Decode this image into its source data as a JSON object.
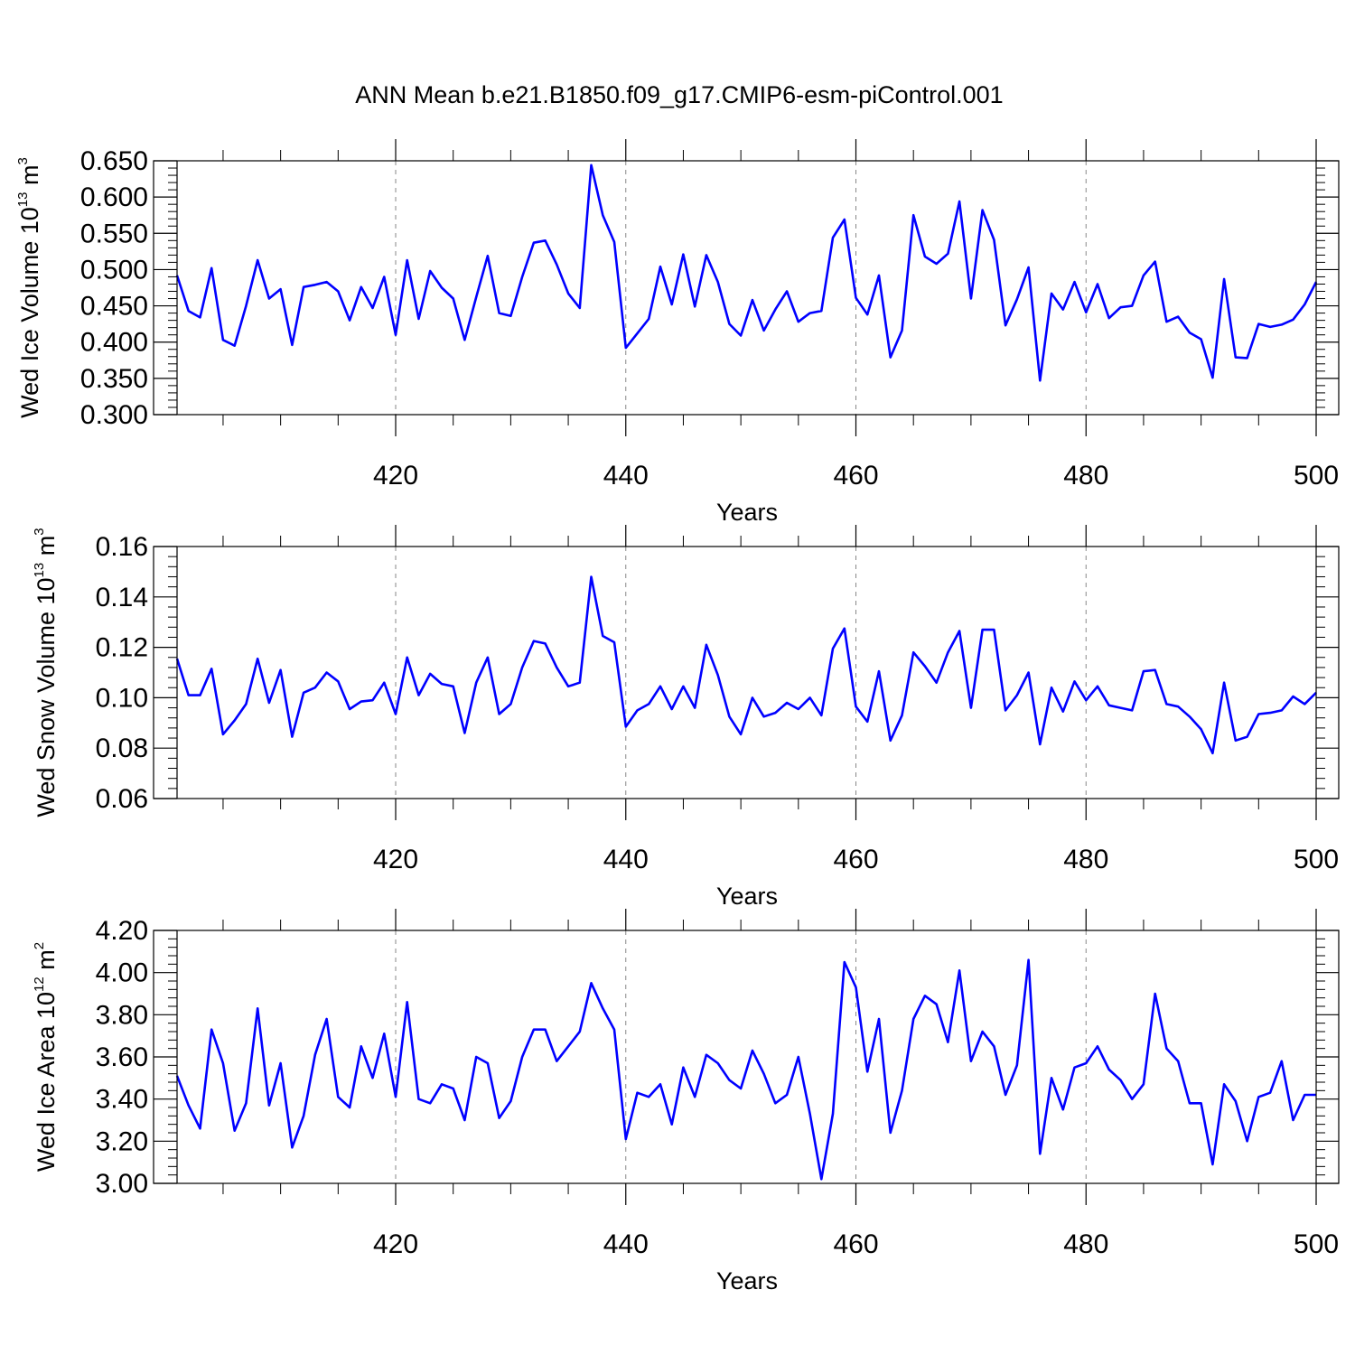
{
  "title": "ANN Mean b.e21.B1850.f09_g17.CMIP6-esm-piControl.001",
  "chart_data": [
    {
      "type": "line",
      "name": "wed-ice-volume",
      "ylabel": "Wed Ice Volume 10",
      "ylabel_exp": "13",
      "ylabel_unit": " m",
      "ylabel_unit_exp": "3",
      "xlabel": "Years",
      "xlim": [
        401,
        500
      ],
      "ylim": [
        0.3,
        0.65
      ],
      "yticks": [
        0.3,
        0.35,
        0.4,
        0.45,
        0.5,
        0.55,
        0.6,
        0.65
      ],
      "ytick_labels": [
        "0.300",
        "0.350",
        "0.400",
        "0.450",
        "0.500",
        "0.550",
        "0.600",
        "0.650"
      ],
      "xticks": [
        420,
        440,
        460,
        480,
        500
      ],
      "xtick_labels": [
        "420",
        "440",
        "460",
        "480",
        "500"
      ],
      "grid": "vertical dashed at major x ticks",
      "line_color": "#0000ff",
      "x_start": 401,
      "values": [
        0.492,
        0.443,
        0.434,
        0.502,
        0.403,
        0.395,
        0.45,
        0.513,
        0.46,
        0.473,
        0.396,
        0.476,
        0.479,
        0.483,
        0.47,
        0.43,
        0.476,
        0.447,
        0.49,
        0.41,
        0.513,
        0.432,
        0.498,
        0.475,
        0.46,
        0.403,
        0.462,
        0.519,
        0.44,
        0.436,
        0.49,
        0.537,
        0.54,
        0.507,
        0.467,
        0.447,
        0.644,
        0.575,
        0.538,
        0.392,
        0.412,
        0.432,
        0.504,
        0.452,
        0.521,
        0.449,
        0.52,
        0.483,
        0.425,
        0.409,
        0.458,
        0.416,
        0.445,
        0.47,
        0.428,
        0.44,
        0.443,
        0.544,
        0.569,
        0.461,
        0.438,
        0.492,
        0.379,
        0.416,
        0.575,
        0.518,
        0.508,
        0.522,
        0.594,
        0.46,
        0.582,
        0.541,
        0.423,
        0.459,
        0.503,
        0.347,
        0.467,
        0.445,
        0.483,
        0.441,
        0.48,
        0.433,
        0.448,
        0.45,
        0.492,
        0.511,
        0.428,
        0.435,
        0.413,
        0.404,
        0.351,
        0.487,
        0.379,
        0.378,
        0.425,
        0.421,
        0.424,
        0.431,
        0.452,
        0.483
      ]
    },
    {
      "type": "line",
      "name": "wed-snow-volume",
      "ylabel": "Wed Snow Volume 10",
      "ylabel_exp": "13",
      "ylabel_unit": " m",
      "ylabel_unit_exp": "3",
      "xlabel": "Years",
      "xlim": [
        401,
        500
      ],
      "ylim": [
        0.06,
        0.16
      ],
      "yticks": [
        0.06,
        0.08,
        0.1,
        0.12,
        0.14,
        0.16
      ],
      "ytick_labels": [
        "0.06",
        "0.08",
        "0.10",
        "0.12",
        "0.14",
        "0.16"
      ],
      "xticks": [
        420,
        440,
        460,
        480,
        500
      ],
      "xtick_labels": [
        "420",
        "440",
        "460",
        "480",
        "500"
      ],
      "grid": "vertical dashed at major x ticks",
      "line_color": "#0000ff",
      "x_start": 401,
      "values": [
        0.1155,
        0.101,
        0.101,
        0.1115,
        0.0855,
        0.091,
        0.0975,
        0.1155,
        0.098,
        0.111,
        0.0845,
        0.102,
        0.104,
        0.11,
        0.1065,
        0.0955,
        0.0985,
        0.099,
        0.106,
        0.0935,
        0.116,
        0.101,
        0.1095,
        0.1055,
        0.1045,
        0.086,
        0.106,
        0.116,
        0.0935,
        0.0975,
        0.112,
        0.1225,
        0.1215,
        0.112,
        0.1045,
        0.106,
        0.148,
        0.1245,
        0.122,
        0.0885,
        0.095,
        0.0975,
        0.1045,
        0.0955,
        0.1045,
        0.096,
        0.121,
        0.109,
        0.0925,
        0.0855,
        0.1,
        0.0925,
        0.094,
        0.098,
        0.0955,
        0.1,
        0.093,
        0.1195,
        0.1275,
        0.0965,
        0.0905,
        0.1105,
        0.083,
        0.093,
        0.118,
        0.1125,
        0.106,
        0.118,
        0.1265,
        0.096,
        0.127,
        0.127,
        0.095,
        0.101,
        0.11,
        0.0815,
        0.104,
        0.0945,
        0.1065,
        0.099,
        0.1045,
        0.097,
        0.096,
        0.095,
        0.1105,
        0.111,
        0.0975,
        0.0965,
        0.0925,
        0.0875,
        0.078,
        0.106,
        0.083,
        0.0845,
        0.0935,
        0.094,
        0.095,
        0.1005,
        0.0975,
        0.102
      ]
    },
    {
      "type": "line",
      "name": "wed-ice-area",
      "ylabel": "Wed Ice Area 10",
      "ylabel_exp": "12",
      "ylabel_unit": " m",
      "ylabel_unit_exp": "2",
      "xlabel": "Years",
      "xlim": [
        401,
        500
      ],
      "ylim": [
        3.0,
        4.2
      ],
      "yticks": [
        3.0,
        3.2,
        3.4,
        3.6,
        3.8,
        4.0,
        4.2
      ],
      "ytick_labels": [
        "3.00",
        "3.20",
        "3.40",
        "3.60",
        "3.80",
        "4.00",
        "4.20"
      ],
      "xticks": [
        420,
        440,
        460,
        480,
        500
      ],
      "xtick_labels": [
        "420",
        "440",
        "460",
        "480",
        "500"
      ],
      "grid": "vertical dashed at major x ticks",
      "line_color": "#0000ff",
      "x_start": 401,
      "values": [
        3.51,
        3.37,
        3.26,
        3.73,
        3.57,
        3.25,
        3.38,
        3.83,
        3.37,
        3.57,
        3.17,
        3.32,
        3.61,
        3.78,
        3.41,
        3.36,
        3.65,
        3.5,
        3.71,
        3.41,
        3.86,
        3.4,
        3.38,
        3.47,
        3.45,
        3.3,
        3.6,
        3.57,
        3.31,
        3.39,
        3.6,
        3.73,
        3.73,
        3.58,
        3.65,
        3.72,
        3.95,
        3.83,
        3.73,
        3.21,
        3.43,
        3.41,
        3.47,
        3.28,
        3.55,
        3.41,
        3.61,
        3.57,
        3.49,
        3.45,
        3.63,
        3.52,
        3.38,
        3.42,
        3.6,
        3.33,
        3.02,
        3.33,
        4.05,
        3.93,
        3.53,
        3.78,
        3.24,
        3.44,
        3.78,
        3.89,
        3.85,
        3.67,
        4.01,
        3.58,
        3.72,
        3.65,
        3.42,
        3.56,
        4.06,
        3.14,
        3.5,
        3.35,
        3.55,
        3.57,
        3.65,
        3.54,
        3.49,
        3.4,
        3.47,
        3.9,
        3.64,
        3.58,
        3.38,
        3.38,
        3.09,
        3.47,
        3.39,
        3.2,
        3.41,
        3.43,
        3.58,
        3.3,
        3.42,
        3.42
      ]
    }
  ]
}
